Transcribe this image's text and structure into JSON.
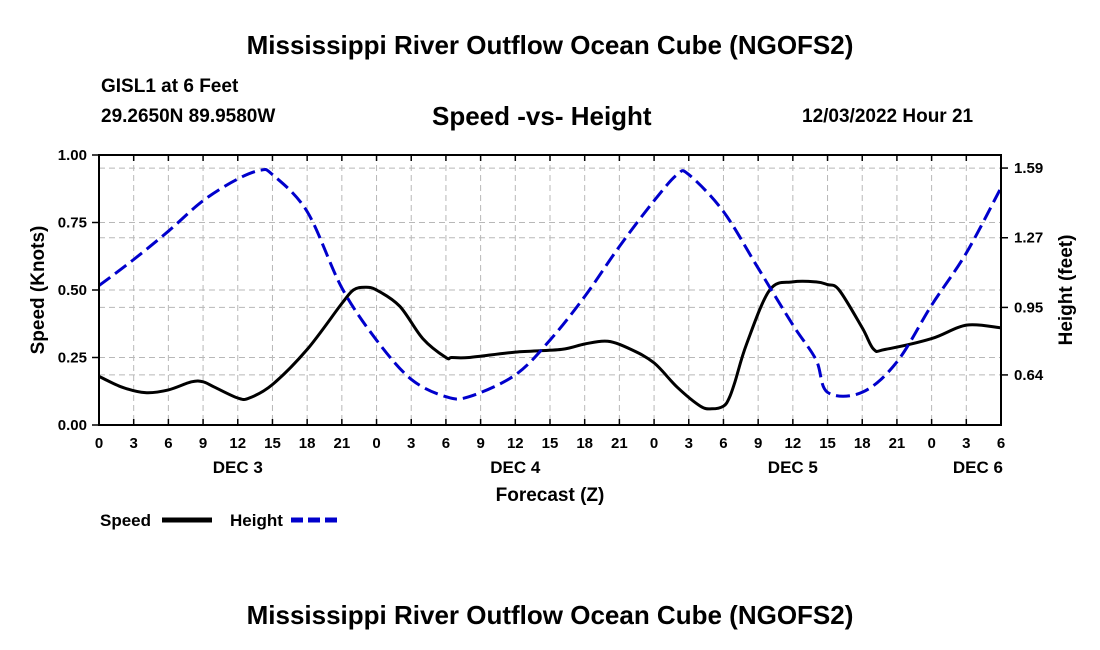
{
  "header": {
    "title": "Mississippi River Outflow Ocean Cube (NGOFS2)",
    "station": "GISL1 at 6 Feet",
    "coords": "29.2650N  89.9580W",
    "date": "12/03/2022 Hour 21"
  },
  "footer": {
    "title": "Mississippi River Outflow Ocean Cube (NGOFS2)"
  },
  "chart_data": {
    "type": "line",
    "title": "Speed -vs- Height",
    "xlabel": "Forecast (Z)",
    "ylabel": "Speed (Knots)",
    "y2label": "Height (feet)",
    "xlim": [
      0,
      78
    ],
    "ylim": [
      0,
      1.0
    ],
    "y2lim": [
      0.41,
      1.65
    ],
    "grid": true,
    "legend_position": "bottom-left",
    "x_ticks": [
      0,
      3,
      6,
      9,
      12,
      15,
      18,
      21,
      24,
      27,
      30,
      33,
      36,
      39,
      42,
      45,
      48,
      51,
      54,
      57,
      60,
      63,
      66,
      69,
      72,
      75,
      78
    ],
    "x_tick_labels": [
      "0",
      "3",
      "6",
      "9",
      "12",
      "15",
      "18",
      "21",
      "0",
      "3",
      "6",
      "9",
      "12",
      "15",
      "18",
      "21",
      "0",
      "3",
      "6",
      "9",
      "12",
      "15",
      "18",
      "21",
      "0",
      "3",
      "6"
    ],
    "x_day_labels": [
      {
        "x": 12,
        "label": "DEC 3"
      },
      {
        "x": 36,
        "label": "DEC 4"
      },
      {
        "x": 60,
        "label": "DEC 5"
      },
      {
        "x": 76,
        "label": "DEC 6"
      }
    ],
    "y_ticks": [
      0,
      0.25,
      0.5,
      0.75,
      1.0
    ],
    "y_tick_labels": [
      "0.00",
      "0.25",
      "0.50",
      "0.75",
      "1.00"
    ],
    "y2_ticks": [
      0.64,
      0.95,
      1.27,
      1.59
    ],
    "y2_tick_labels": [
      "0.64",
      "0.95",
      "1.27",
      "1.59"
    ],
    "series": [
      {
        "name": "Speed",
        "axis": "left",
        "color": "#000000",
        "dash": "solid",
        "x": [
          0,
          2,
          4,
          6,
          8,
          9,
          10,
          12,
          13,
          15,
          18,
          21,
          22,
          23,
          24,
          26,
          28,
          30,
          30.5,
          32,
          36,
          40,
          42,
          44,
          46,
          48,
          50,
          52,
          53,
          54,
          54.5,
          55,
          56,
          58,
          60,
          62,
          63,
          64,
          66,
          67,
          68,
          72,
          75,
          78
        ],
        "values": [
          0.18,
          0.14,
          0.12,
          0.13,
          0.16,
          0.16,
          0.14,
          0.1,
          0.1,
          0.15,
          0.28,
          0.45,
          0.5,
          0.51,
          0.5,
          0.44,
          0.32,
          0.25,
          0.25,
          0.25,
          0.27,
          0.28,
          0.3,
          0.31,
          0.28,
          0.23,
          0.14,
          0.07,
          0.06,
          0.07,
          0.1,
          0.16,
          0.3,
          0.5,
          0.53,
          0.53,
          0.52,
          0.5,
          0.36,
          0.28,
          0.28,
          0.32,
          0.37,
          0.36
        ]
      },
      {
        "name": "Height",
        "axis": "right",
        "color": "#0000cc",
        "dash": "dashed",
        "x": [
          0,
          3,
          6,
          9,
          12,
          14,
          15,
          18,
          21,
          24,
          27,
          30,
          32,
          36,
          39,
          42,
          45,
          48,
          50,
          51,
          54,
          57,
          60,
          62,
          63,
          66,
          69,
          72,
          75,
          78
        ],
        "values": [
          1.05,
          1.17,
          1.3,
          1.44,
          1.54,
          1.58,
          1.56,
          1.39,
          1.04,
          0.8,
          0.62,
          0.54,
          0.54,
          0.64,
          0.8,
          1.0,
          1.23,
          1.44,
          1.56,
          1.56,
          1.39,
          1.13,
          0.87,
          0.71,
          0.56,
          0.56,
          0.7,
          0.96,
          1.2,
          1.5
        ]
      }
    ]
  }
}
